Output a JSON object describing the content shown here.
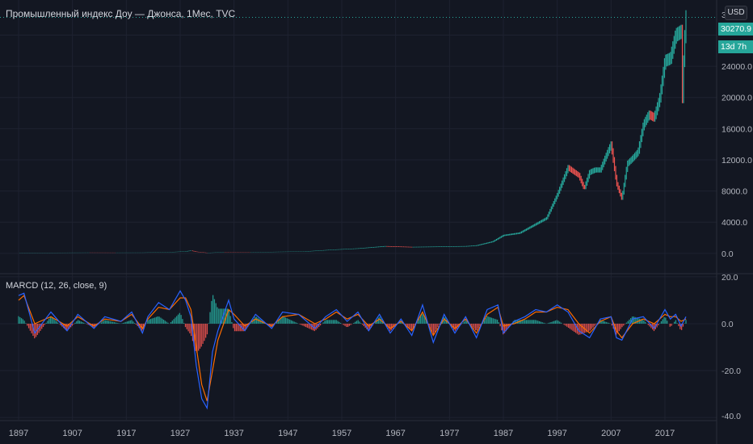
{
  "header": {
    "title": "Промышленный индекс Доу — Джонса, 1Мес, TVC",
    "currency": "USD"
  },
  "price_axis": {
    "last_price": "30270.9",
    "countdown": "13d 7h",
    "partial_top_tick": "3"
  },
  "indicator": {
    "title": "MARCD (12, 26, close, 9)"
  },
  "colors": {
    "background": "#131722",
    "grid": "#1e2230",
    "axis_text": "#b2b5be",
    "up": "#26a69a",
    "down": "#ef5350",
    "macd_line": "#2962ff",
    "signal_line": "#ff6d00",
    "hist_pos": "#26a69a",
    "hist_neg": "#ef5350"
  },
  "chart_data": [
    {
      "type": "line",
      "name": "price",
      "x": [
        1897,
        1900,
        1905,
        1910,
        1915,
        1920,
        1925,
        1928,
        1929,
        1930,
        1932,
        1935,
        1940,
        1945,
        1950,
        1955,
        1960,
        1965,
        1970,
        1975,
        1980,
        1982,
        1985,
        1987,
        1990,
        1995,
        1997,
        1999,
        2000,
        2001,
        2002,
        2003,
        2004,
        2005,
        2006,
        2007,
        2008,
        2009,
        2010,
        2011,
        2012,
        2013,
        2014,
        2015,
        2016,
        2017,
        2018,
        2019,
        2020.1,
        2020.25,
        2020.5,
        2020.9
      ],
      "values": [
        40,
        70,
        80,
        90,
        85,
        90,
        150,
        250,
        350,
        200,
        60,
        150,
        130,
        190,
        230,
        450,
        620,
        900,
        800,
        850,
        900,
        1000,
        1500,
        2300,
        2600,
        4500,
        7500,
        11000,
        10500,
        10000,
        8300,
        10400,
        10700,
        10700,
        12400,
        14000,
        9000,
        7000,
        11500,
        12200,
        13000,
        16500,
        17800,
        17400,
        19800,
        24700,
        25000,
        28000,
        28500,
        19000,
        25800,
        30270.9
      ],
      "ylim": [
        -2500,
        32500
      ],
      "yticks": [
        0,
        4000,
        8000,
        12000,
        16000,
        20000,
        24000
      ],
      "ytick_labels": [
        "0.0",
        "4000.0",
        "8000.0",
        "12000.0",
        "16000.0",
        "20000.0",
        "24000.0"
      ]
    },
    {
      "type": "line",
      "name": "MARCD",
      "x": [
        1897,
        1898,
        1900,
        1903,
        1906,
        1908,
        1911,
        1913,
        1916,
        1918,
        1920,
        1921,
        1923,
        1925,
        1927,
        1928,
        1929,
        1930,
        1931,
        1932,
        1933,
        1934,
        1936,
        1937,
        1939,
        1941,
        1944,
        1946,
        1949,
        1952,
        1954,
        1956,
        1958,
        1960,
        1962,
        1964,
        1966,
        1968,
        1970,
        1972,
        1974,
        1976,
        1978,
        1980,
        1982,
        1984,
        1986,
        1987,
        1989,
        1991,
        1993,
        1995,
        1997,
        1999,
        2001,
        2003,
        2005,
        2007,
        2008,
        2009,
        2011,
        2013,
        2015,
        2017,
        2018,
        2019,
        2020,
        2020.9
      ],
      "series": [
        {
          "name": "macd",
          "values": [
            12,
            13,
            -4,
            5,
            -3,
            4,
            -2,
            3,
            1,
            5,
            -4,
            3,
            9,
            6,
            14,
            10,
            3,
            -18,
            -32,
            -36,
            -12,
            -3,
            10,
            2,
            -3,
            4,
            -2,
            5,
            4,
            -2,
            3,
            6,
            1,
            5,
            -3,
            4,
            -4,
            2,
            -5,
            8,
            -8,
            4,
            -4,
            3,
            -6,
            6,
            8,
            -4,
            1,
            3,
            6,
            5,
            8,
            5,
            -3,
            -6,
            2,
            3,
            -6,
            -7,
            2,
            3,
            -2,
            6,
            2,
            4,
            -1,
            3
          ]
        },
        {
          "name": "signal",
          "values": [
            10,
            12,
            0,
            3,
            -1,
            3,
            -1,
            2,
            1,
            4,
            -2,
            2,
            7,
            6,
            11,
            11,
            6,
            -10,
            -26,
            -33,
            -20,
            -7,
            6,
            4,
            -1,
            2,
            -1,
            3,
            4,
            0,
            2,
            5,
            2,
            4,
            -1,
            2,
            -2,
            1,
            -3,
            5,
            -5,
            2,
            -2,
            2,
            -4,
            4,
            7,
            -1,
            0,
            2,
            5,
            5,
            7,
            6,
            0,
            -4,
            1,
            3,
            -3,
            -6,
            0,
            2,
            0,
            4,
            3,
            3,
            1,
            2
          ]
        }
      ],
      "ylim": [
        -41,
        21
      ],
      "yticks": [
        20,
        0,
        -20,
        -40
      ],
      "ytick_labels": [
        "20.0",
        "0.0",
        "-20.0",
        "-40.0"
      ]
    }
  ],
  "time_axis": {
    "ticks": [
      1897,
      1907,
      1917,
      1927,
      1937,
      1947,
      1957,
      1967,
      1977,
      1987,
      1997,
      2007,
      2017
    ],
    "labels": [
      "1897",
      "1907",
      "1917",
      "1927",
      "1937",
      "1947",
      "1957",
      "1967",
      "1977",
      "1987",
      "1997",
      "2007",
      "2017"
    ]
  }
}
